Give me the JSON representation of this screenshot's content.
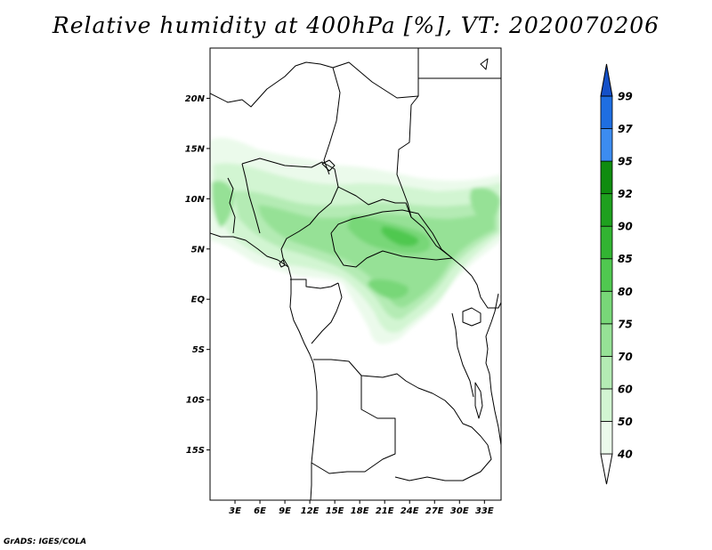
{
  "title": "Relative humidity at 400hPa [%], VT: 2020070206",
  "credit": "GrADS: IGES/COLA",
  "map": {
    "lon_range": [
      0,
      35
    ],
    "lat_range": [
      -20,
      25
    ],
    "lat_ticks": [
      {
        "value": 20,
        "label": "20N"
      },
      {
        "value": 15,
        "label": "15N"
      },
      {
        "value": 10,
        "label": "10N"
      },
      {
        "value": 5,
        "label": "5N"
      },
      {
        "value": 0,
        "label": "EQ"
      },
      {
        "value": -5,
        "label": "5S"
      },
      {
        "value": -10,
        "label": "10S"
      },
      {
        "value": -15,
        "label": "15S"
      }
    ],
    "lon_ticks": [
      {
        "value": 3,
        "label": "3E"
      },
      {
        "value": 6,
        "label": "6E"
      },
      {
        "value": 9,
        "label": "9E"
      },
      {
        "value": 12,
        "label": "12E"
      },
      {
        "value": 15,
        "label": "15E"
      },
      {
        "value": 18,
        "label": "18E"
      },
      {
        "value": 21,
        "label": "21E"
      },
      {
        "value": 24,
        "label": "24E"
      },
      {
        "value": 27,
        "label": "27E"
      },
      {
        "value": 30,
        "label": "30E"
      },
      {
        "value": 33,
        "label": "33E"
      }
    ]
  },
  "colorbar": {
    "levels": [
      "40",
      "50",
      "60",
      "70",
      "75",
      "80",
      "85",
      "90",
      "92",
      "95",
      "97",
      "99"
    ],
    "colors": [
      "#ebfaeb",
      "#d2f5d2",
      "#b4ebb4",
      "#96e196",
      "#78d778",
      "#50c850",
      "#32b432",
      "#1ea01e",
      "#0f8c0f",
      "#3c8cf0",
      "#1e6ee1",
      "#1450c8"
    ],
    "below_color": "#ffffff"
  }
}
